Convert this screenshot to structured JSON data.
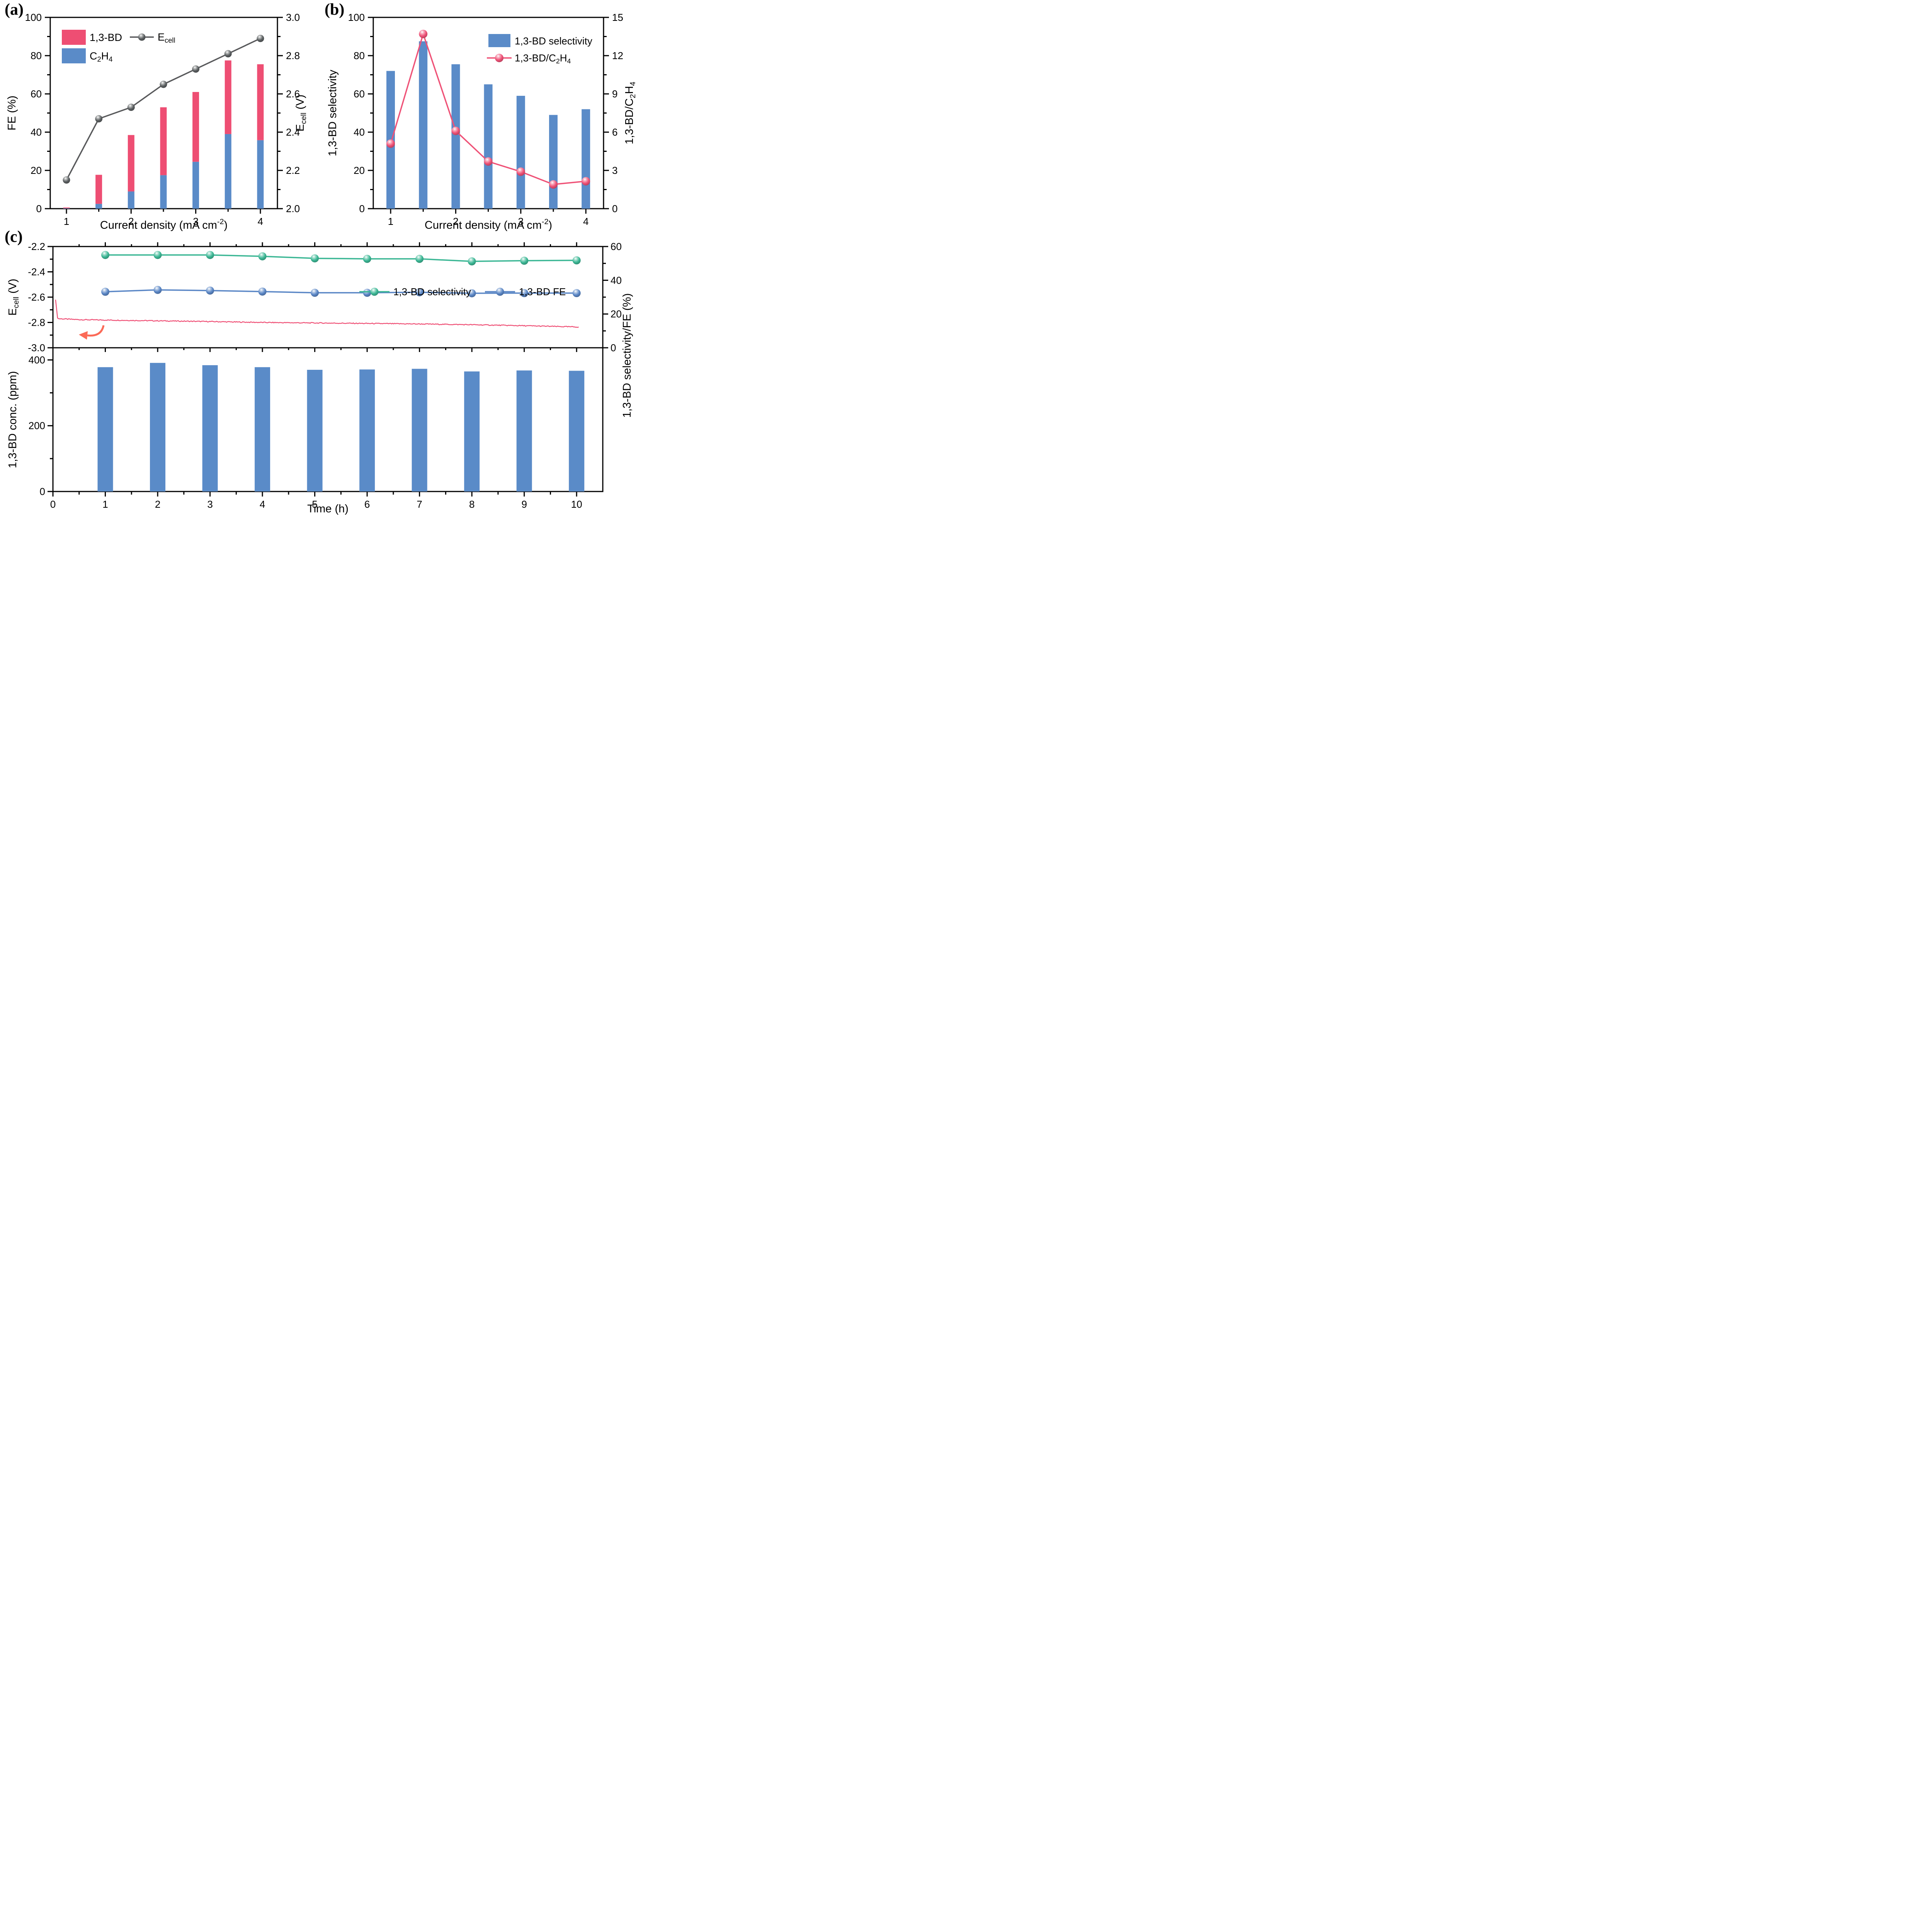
{
  "figure_type": "scientific-three-panel-electrochemistry-figure",
  "panels": {
    "a_label": "(a)",
    "b_label": "(b)",
    "c_label": "(c)"
  },
  "chart_data": [
    {
      "panel": "(a)",
      "type": "bar+line",
      "x": {
        "title": "Current density (mA cm^-2^)",
        "ticks": [
          1,
          2,
          3,
          4
        ],
        "tick_labels": [
          "1",
          "2",
          "3",
          "4"
        ],
        "minor_ticks": [
          1.5,
          2.5,
          3.5
        ]
      },
      "left": {
        "title": "FE (%)",
        "min": 0,
        "max": 100,
        "ticks": [
          0,
          20,
          40,
          60,
          80,
          100
        ],
        "labels": [
          "0",
          "20",
          "40",
          "60",
          "80",
          "100"
        ],
        "minor": [
          10,
          30,
          50,
          70,
          90
        ]
      },
      "right": {
        "title": "E~cell~ (V)",
        "min": 2.0,
        "max": 3.0,
        "ticks": [
          2.0,
          2.2,
          2.4,
          2.6,
          2.8,
          3.0
        ],
        "labels": [
          "2.0",
          "2.2",
          "2.4",
          "2.6",
          "2.8",
          "3.0"
        ],
        "minor": [
          2.1,
          2.3,
          2.5,
          2.7,
          2.9
        ]
      },
      "categories": [
        1,
        1.5,
        2,
        2.5,
        3,
        3.5,
        4
      ],
      "series": [
        {
          "name": "1,3-BD",
          "type": "bar-stack-top",
          "color": "#ee4e73",
          "values": [
            0.4,
            15.2,
            29.5,
            35.5,
            36.5,
            38.5,
            39.7
          ]
        },
        {
          "name": "C~2~H~4~",
          "type": "bar-stack-bottom",
          "color": "#5a8bc8",
          "values": [
            0.2,
            2.5,
            9,
            17.5,
            24.5,
            39,
            35.8
          ]
        },
        {
          "name": "E~cell~",
          "type": "line",
          "axis": "right",
          "color": "#58595b",
          "values": [
            2.15,
            2.47,
            2.53,
            2.65,
            2.73,
            2.81,
            2.89
          ]
        }
      ]
    },
    {
      "panel": "(b)",
      "type": "bar+line",
      "x": {
        "title": "Current density (mA cm^-2^)",
        "ticks": [
          1,
          2,
          3,
          4
        ],
        "tick_labels": [
          "1",
          "2",
          "3",
          "4"
        ],
        "minor_ticks": [
          1.5,
          2.5,
          3.5
        ]
      },
      "left": {
        "title": "1,3-BD selectivity",
        "min": 0,
        "max": 100,
        "ticks": [
          0,
          20,
          40,
          60,
          80,
          100
        ],
        "labels": [
          "0",
          "20",
          "40",
          "60",
          "80",
          "100"
        ],
        "minor": [
          10,
          30,
          50,
          70,
          90
        ]
      },
      "right": {
        "title": "1,3-BD/C~2~H~4~",
        "min": 0,
        "max": 15,
        "ticks": [
          0,
          3,
          6,
          9,
          12,
          15
        ],
        "labels": [
          "0",
          "3",
          "6",
          "9",
          "12",
          "15"
        ],
        "minor": [
          1.5,
          4.5,
          7.5,
          10.5,
          13.5
        ]
      },
      "categories": [
        1,
        1.5,
        2,
        2.5,
        3,
        3.5,
        4
      ],
      "series": [
        {
          "name": "1,3-BD selectivity",
          "type": "bar",
          "color": "#5a8bc8",
          "values": [
            72,
            87.5,
            75.5,
            65,
            59,
            49,
            52
          ]
        },
        {
          "name": "1,3-BD/C~2~H~4~",
          "type": "line",
          "axis": "right",
          "color": "#ef5277",
          "values": [
            5.1,
            13.7,
            6.1,
            3.7,
            2.9,
            1.9,
            2.15
          ]
        }
      ]
    },
    {
      "panel": "(c)",
      "type": "stability-dual-subplot",
      "time_h": [
        1,
        2,
        3,
        4,
        5,
        6,
        7,
        8,
        9,
        10
      ],
      "x": {
        "title": "Time (h)",
        "min": 0,
        "max": 10.5,
        "ticks": [
          0,
          1,
          2,
          3,
          4,
          5,
          6,
          7,
          8,
          9,
          10
        ],
        "tick_labels": [
          "0",
          "1",
          "2",
          "3",
          "4",
          "5",
          "6",
          "7",
          "8",
          "9",
          "10"
        ]
      },
      "top": {
        "left": {
          "title": "E~cell~ (V)",
          "min": -3.0,
          "max": -2.2,
          "ticks": [
            -2.2,
            -2.4,
            -2.6,
            -2.8,
            -3.0
          ],
          "labels": [
            "-2.2",
            "-2.4",
            "-2.6",
            "-2.8",
            "-3.0"
          ],
          "minor": [
            -2.3,
            -2.5,
            -2.7,
            -2.9
          ]
        },
        "right": {
          "title": "1,3-BD selectivity/FE (%)",
          "min": 0,
          "max": 60,
          "ticks": [
            0,
            20,
            40,
            60
          ],
          "labels": [
            "0",
            "20",
            "40",
            "60"
          ],
          "minor": [
            10,
            30,
            50
          ]
        },
        "selectivity": {
          "name": "1,3-BD selectivity",
          "color": "#3cb795",
          "values": [
            55,
            55,
            55,
            54.2,
            53,
            52.7,
            52.7,
            51.2,
            51.6,
            51.8
          ]
        },
        "fe": {
          "name": "1,3-BD FE",
          "color": "#5b87c6",
          "values": [
            33.2,
            34.3,
            33.9,
            33.3,
            32.6,
            32.6,
            32.9,
            32.3,
            32.4,
            32.4
          ]
        },
        "ecell_trace": {
          "color": "#ef5277",
          "noise": 0.0035,
          "control_points": [
            [
              0.05,
              -2.62
            ],
            [
              0.09,
              -2.77
            ],
            [
              0.5,
              -2.778
            ],
            [
              1,
              -2.781
            ],
            [
              2,
              -2.787
            ],
            [
              3,
              -2.793
            ],
            [
              4,
              -2.8
            ],
            [
              5,
              -2.804
            ],
            [
              6,
              -2.808
            ],
            [
              7,
              -2.812
            ],
            [
              8,
              -2.818
            ],
            [
              9,
              -2.826
            ],
            [
              10.05,
              -2.836
            ]
          ]
        },
        "arrow_color": "#fb6a57"
      },
      "bottom": {
        "left": {
          "title": "1,3-BD conc. (ppm)",
          "min": 0,
          "max": 437,
          "ticks": [
            0,
            200,
            400
          ],
          "labels": [
            "0",
            "200",
            "400"
          ],
          "minor": [
            100,
            300
          ]
        },
        "bars": {
          "name": "1,3-BD conc.",
          "color": "#5a8bc8",
          "values": [
            378,
            391,
            384,
            378,
            370,
            371,
            373,
            365,
            368,
            367
          ]
        }
      }
    }
  ]
}
